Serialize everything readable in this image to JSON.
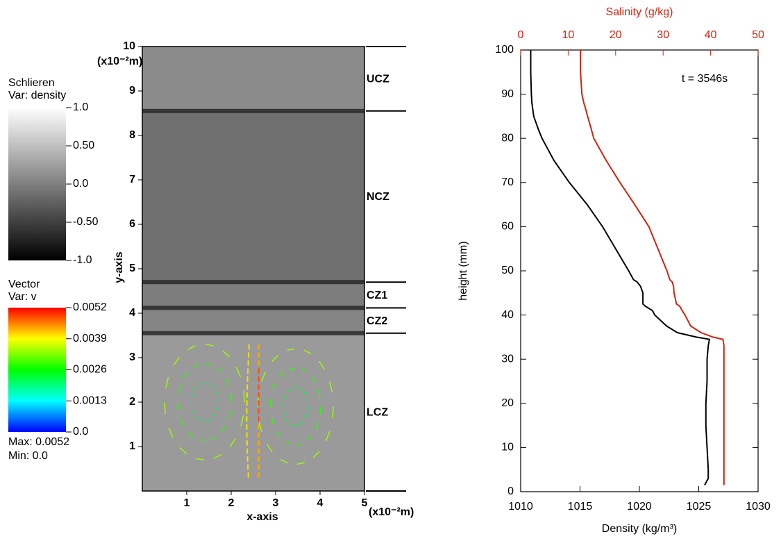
{
  "chart_data": [
    {
      "type": "field",
      "x_label": "x-axis",
      "y_label": "y-axis",
      "x_unit": "(x10⁻²m)",
      "y_unit": "(x10⁻²m)",
      "xlim": [
        0,
        5
      ],
      "xticks": [
        1,
        2,
        3,
        4,
        5
      ],
      "ylim": [
        0,
        10
      ],
      "yticks": [
        1,
        2,
        3,
        4,
        5,
        6,
        7,
        8,
        9,
        10
      ],
      "zone_bounds": [
        10,
        8.55,
        4.7,
        4.12,
        3.55,
        0
      ],
      "zones": [
        "UCZ",
        "NCZ",
        "CZ1",
        "CZ2",
        "LCZ"
      ],
      "colorbars": [
        {
          "title": "Schlieren",
          "variable": "Var: density",
          "colors": [
            "#ffffff",
            "#000000"
          ],
          "range": [
            1,
            -1
          ],
          "ticks": [
            {
              "value": 1,
              "label": "1.0"
            },
            {
              "value": 0.5,
              "label": "0.50"
            },
            {
              "value": 0,
              "label": "0.0"
            },
            {
              "value": -0.5,
              "label": "-0.50"
            },
            {
              "value": -1,
              "label": "-1.0"
            }
          ]
        },
        {
          "title": "Vector",
          "variable": "Var: v",
          "colors": [
            "#ff0000",
            "#ffff00",
            "#00ff00",
            "#00ffff",
            "#0000ff"
          ],
          "range": [
            0.0052,
            0
          ],
          "ticks": [
            0.0052,
            0.0039,
            0.0026,
            0.0013,
            {
              "value": 0,
              "label": "0.0"
            }
          ],
          "max_text": "Max: 0.0052",
          "min_text": "Min: 0.0"
        }
      ]
    },
    {
      "type": "line",
      "y_label": "height (mm)",
      "x_label": "Density (kg/m³)",
      "x2_label": "Salinity (g/kg)",
      "x2_color": "#d62010",
      "annotation": "t = 3546s",
      "xlim": [
        1010,
        1030
      ],
      "xticks": [
        1010,
        1015,
        1020,
        1025,
        1030
      ],
      "x2lim": [
        0,
        50
      ],
      "x2ticks": [
        0,
        10,
        20,
        30,
        40,
        50
      ],
      "ylim": [
        0,
        100
      ],
      "yticks": [
        0,
        10,
        20,
        30,
        40,
        50,
        60,
        70,
        80,
        90,
        100
      ],
      "y": [
        1.5,
        3,
        5,
        10,
        15,
        20,
        25,
        30,
        33,
        34.5,
        35,
        36,
        37.5,
        40,
        41,
        42,
        42.5,
        45,
        46.5,
        47.5,
        48,
        50,
        55,
        60,
        65,
        70,
        75,
        80,
        82,
        85,
        87,
        88,
        90,
        95,
        100
      ],
      "series": [
        {
          "color": "#000000",
          "axis": "x",
          "values": [
            1025.5,
            1025.8,
            1025.8,
            1025.7,
            1025.6,
            1025.6,
            1025.7,
            1025.7,
            1025.8,
            1025.9,
            1024.8,
            1023.2,
            1022.3,
            1021.3,
            1021.1,
            1020.5,
            1020.3,
            1020.3,
            1020.1,
            1019.8,
            1019.5,
            1019.1,
            1018.0,
            1016.9,
            1015.6,
            1014.1,
            1012.8,
            1011.8,
            1011.5,
            1011.1,
            1011.0,
            1010.95,
            1010.9,
            1010.85,
            1010.85
          ]
        },
        {
          "color": "#d62010",
          "axis": "x2",
          "values": [
            42.8,
            42.8,
            42.8,
            42.8,
            42.8,
            42.8,
            42.8,
            42.8,
            42.8,
            42.6,
            40.5,
            38.0,
            35.8,
            34.6,
            34.0,
            33.5,
            32.8,
            32.3,
            32.2,
            31.9,
            31.4,
            30.8,
            28.9,
            27.0,
            24.0,
            20.9,
            18.0,
            15.4,
            14.9,
            14.1,
            13.6,
            13.3,
            12.9,
            12.6,
            12.6
          ]
        }
      ]
    }
  ]
}
